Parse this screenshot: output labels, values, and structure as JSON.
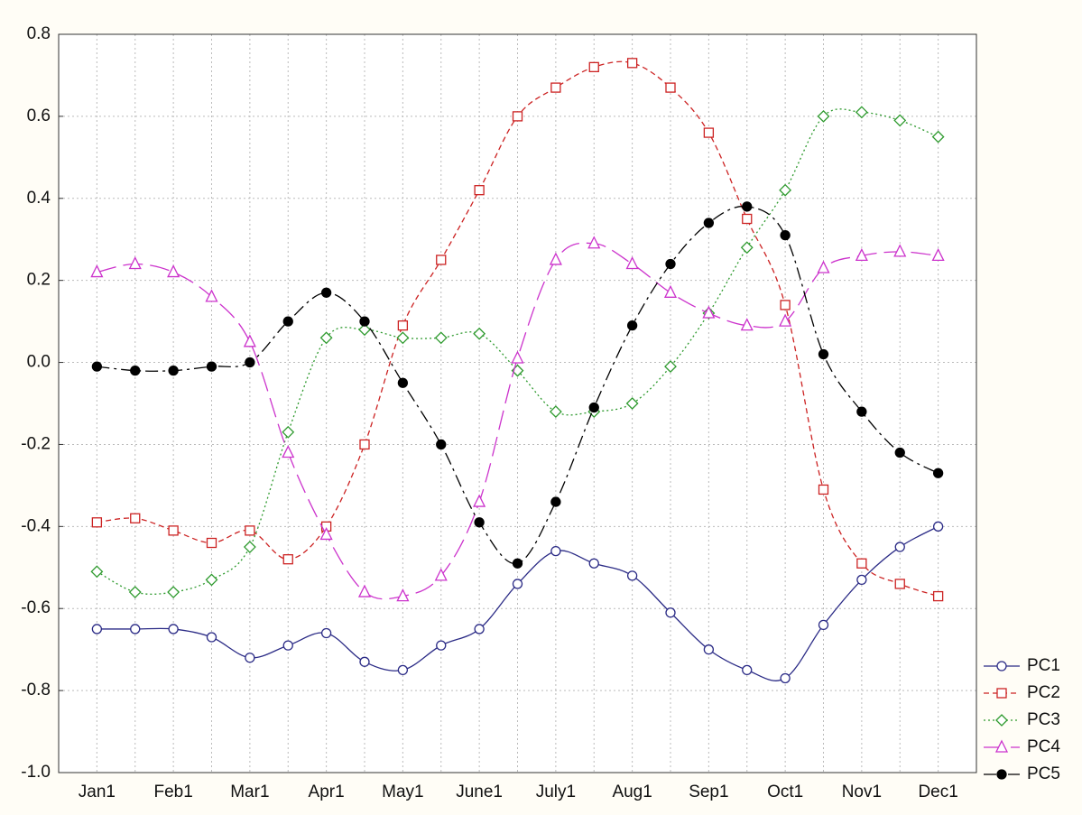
{
  "chart_data": {
    "type": "line",
    "categories": [
      "Jan1",
      null,
      "Feb1",
      null,
      "Mar1",
      null,
      "Apr1",
      null,
      "May1",
      null,
      "June1",
      null,
      "July1",
      null,
      "Aug1",
      null,
      "Sep1",
      null,
      "Oct1",
      null,
      "Nov1",
      null,
      "Dec1"
    ],
    "series": [
      {
        "name": "PC1",
        "color": "#2b2b86",
        "marker": "circle",
        "linestyle": "solid",
        "values": [
          -0.65,
          -0.65,
          -0.65,
          -0.67,
          -0.72,
          -0.69,
          -0.66,
          -0.73,
          -0.75,
          -0.69,
          -0.65,
          -0.54,
          -0.46,
          -0.49,
          -0.52,
          -0.61,
          -0.7,
          -0.75,
          -0.77,
          -0.64,
          -0.53,
          -0.45,
          -0.4
        ]
      },
      {
        "name": "PC2",
        "color": "#cc2222",
        "marker": "square",
        "linestyle": "dashed",
        "values": [
          -0.39,
          -0.38,
          -0.41,
          -0.44,
          -0.41,
          -0.48,
          -0.4,
          -0.2,
          0.09,
          0.25,
          0.42,
          0.6,
          0.67,
          0.72,
          0.73,
          0.67,
          0.56,
          0.35,
          0.14,
          -0.31,
          -0.49,
          -0.54,
          -0.57
        ]
      },
      {
        "name": "PC3",
        "color": "#2e9a2e",
        "marker": "diamond",
        "linestyle": "dotted",
        "values": [
          -0.51,
          -0.56,
          -0.56,
          -0.53,
          -0.45,
          -0.17,
          0.06,
          0.08,
          0.06,
          0.06,
          0.07,
          -0.02,
          -0.12,
          -0.12,
          -0.1,
          -0.01,
          0.12,
          0.28,
          0.42,
          0.6,
          0.61,
          0.59,
          0.55
        ]
      },
      {
        "name": "PC4",
        "color": "#cc33cc",
        "marker": "triangle",
        "linestyle": "longdash",
        "values": [
          0.22,
          0.24,
          0.22,
          0.16,
          0.05,
          -0.22,
          -0.42,
          -0.56,
          -0.57,
          -0.52,
          -0.34,
          0.01,
          0.25,
          0.29,
          0.24,
          0.17,
          0.12,
          0.09,
          0.1,
          0.23,
          0.26,
          0.27,
          0.26
        ]
      },
      {
        "name": "PC5",
        "color": "#000000",
        "marker": "filled-circle",
        "linestyle": "dashdot",
        "values": [
          -0.01,
          -0.02,
          -0.02,
          -0.01,
          0.0,
          0.1,
          0.17,
          0.1,
          -0.05,
          -0.2,
          -0.39,
          -0.49,
          -0.34,
          -0.11,
          0.09,
          0.24,
          0.34,
          0.38,
          0.31,
          0.02,
          -0.12,
          -0.22,
          -0.27
        ]
      }
    ],
    "ylim": [
      -1.0,
      0.8
    ],
    "yticks": [
      {
        "value": -1.0,
        "label": "-1.0"
      },
      -0.8,
      -0.6,
      -0.4,
      -0.2,
      {
        "value": 0.0,
        "label": "0.0"
      },
      0.2,
      0.4,
      0.6,
      0.8
    ],
    "grid": true,
    "legend": "lower right outside"
  }
}
